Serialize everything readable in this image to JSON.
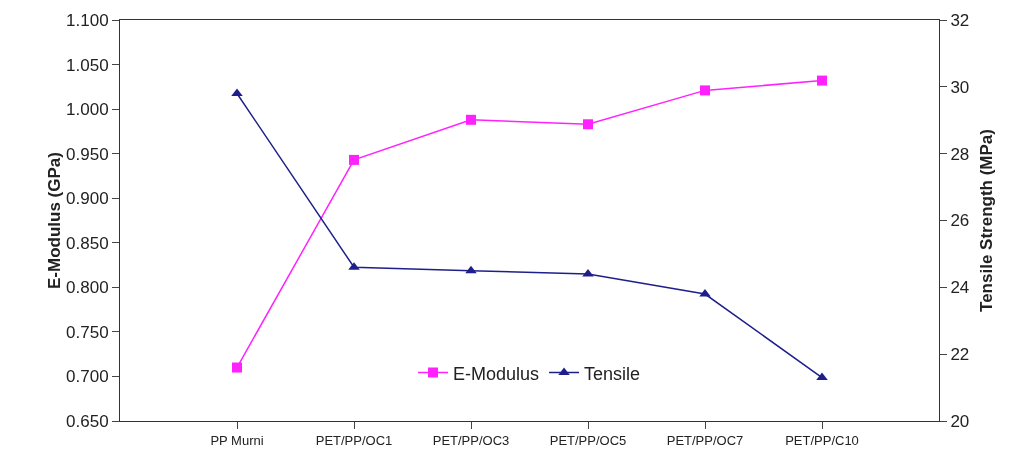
{
  "chart_data": {
    "type": "line",
    "categories": [
      "PP Murni",
      "PET/PP/OC1",
      "PET/PP/OC3",
      "PET/PP/OC5",
      "PET/PP/OC7",
      "PET/PP/C10"
    ],
    "series": [
      {
        "name": "E-Modulus",
        "color": "#ff22ff",
        "marker": "square",
        "values": [
          0.71,
          0.943,
          0.988,
          0.983,
          1.021,
          1.032
        ]
      },
      {
        "name": "Tensile",
        "color": "#1f1f8c",
        "marker": "triangle",
        "axis": "y2",
        "values": [
          29.8,
          24.6,
          24.5,
          24.4,
          23.8,
          21.3
        ]
      }
    ],
    "ylabel": "E-Modulus (GPa)",
    "y2label": "Tensile Strength (MPa)",
    "ylim": [
      0.65,
      1.1
    ],
    "yticks": [
      {
        "value": 0.65,
        "label": "0.650"
      },
      {
        "value": 0.7,
        "label": "0.700"
      },
      {
        "value": 0.75,
        "label": "0.750"
      },
      {
        "value": 0.8,
        "label": "0.800"
      },
      {
        "value": 0.85,
        "label": "0.850"
      },
      {
        "value": 0.9,
        "label": "0.900"
      },
      {
        "value": 0.95,
        "label": "0.950"
      },
      {
        "value": 1.0,
        "label": "1.000"
      },
      {
        "value": 1.05,
        "label": "1.050"
      },
      {
        "value": 1.1,
        "label": "1.100"
      }
    ],
    "y2lim": [
      20,
      32
    ],
    "y2ticks": [
      20,
      22,
      24,
      26,
      28,
      30,
      32
    ],
    "grid": false,
    "legend": "bottom"
  }
}
